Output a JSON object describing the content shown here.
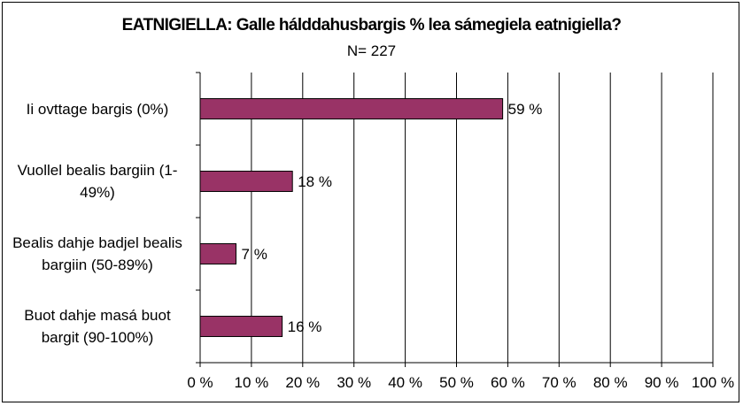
{
  "chart_data": {
    "type": "bar",
    "orientation": "horizontal",
    "title": "EATNIGIELLA: Galle hálddahusbargis % lea sámegiela eatnigiella?",
    "subtitle": "N= 227",
    "categories": [
      "Ii ovttage bargis (0%)",
      "Vuollel bealis bargiin (1-49%)",
      "Bealis dahje badjel bealis bargiin (50-89%)",
      "Buot dahje masá buot bargit (90-100%)"
    ],
    "category_label_lines": [
      [
        "Ii ovttage bargis (0%)"
      ],
      [
        "Vuollel bealis bargiin (1-",
        "49%)"
      ],
      [
        "Bealis dahje badjel bealis",
        "bargiin (50-89%)"
      ],
      [
        "Buot dahje masá buot",
        "bargit (90-100%)"
      ]
    ],
    "values": [
      59,
      18,
      7,
      16
    ],
    "data_labels": [
      "59 %",
      "18 %",
      "7 %",
      "16 %"
    ],
    "xlim": [
      0,
      100
    ],
    "xticks": [
      0,
      10,
      20,
      30,
      40,
      50,
      60,
      70,
      80,
      90,
      100
    ],
    "xtick_labels": [
      "0 %",
      "10 %",
      "20 %",
      "30 %",
      "40 %",
      "50 %",
      "60 %",
      "70 %",
      "80 %",
      "90 %",
      "100 %"
    ],
    "grid": "vertical",
    "legend": "none",
    "bar_color": "#993366"
  }
}
